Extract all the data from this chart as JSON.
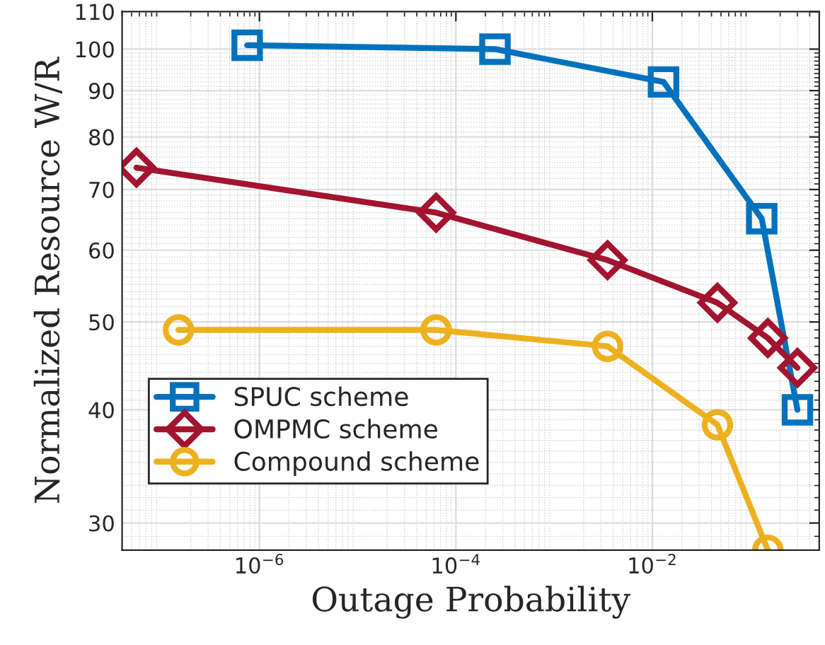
{
  "chart_data": {
    "type": "line",
    "xlabel": "Outage Probability",
    "ylabel": "Normalized Resource W/R",
    "log": "xy",
    "xlim": [
      4e-08,
      0.5
    ],
    "ylim": [
      28,
      110
    ],
    "xticks": [
      {
        "value": 1e-06,
        "label": "10$^{−6}$"
      },
      {
        "value": 0.0001,
        "label": "10$^{−4}$"
      },
      {
        "value": 0.01,
        "label": "10$^{−2}$"
      }
    ],
    "yticks": [
      30,
      40,
      50,
      60,
      70,
      80,
      90,
      100,
      110
    ],
    "grid": true,
    "legend": "bottom left",
    "line_style": "solid",
    "series": [
      {
        "name": "SPUC scheme",
        "color": "#0072bd",
        "marker": "square",
        "x": [
          7.5e-07,
          0.00025,
          0.013,
          0.13,
          0.3
        ],
        "values": [
          101,
          100,
          92,
          65,
          40
        ]
      },
      {
        "name": "OMPMC scheme",
        "color": "#a2142f",
        "marker": "diamond",
        "x": [
          5.6e-08,
          6.3e-05,
          0.0035,
          0.046,
          0.15,
          0.3
        ],
        "values": [
          74,
          66,
          58.5,
          52.5,
          48,
          44.5
        ]
      },
      {
        "name": "Compound scheme",
        "color": "#edb120",
        "marker": "circle",
        "x": [
          1.5e-07,
          6.3e-05,
          0.0035,
          0.046,
          0.15
        ],
        "values": [
          49,
          49,
          47,
          38.5,
          28
        ]
      }
    ]
  }
}
